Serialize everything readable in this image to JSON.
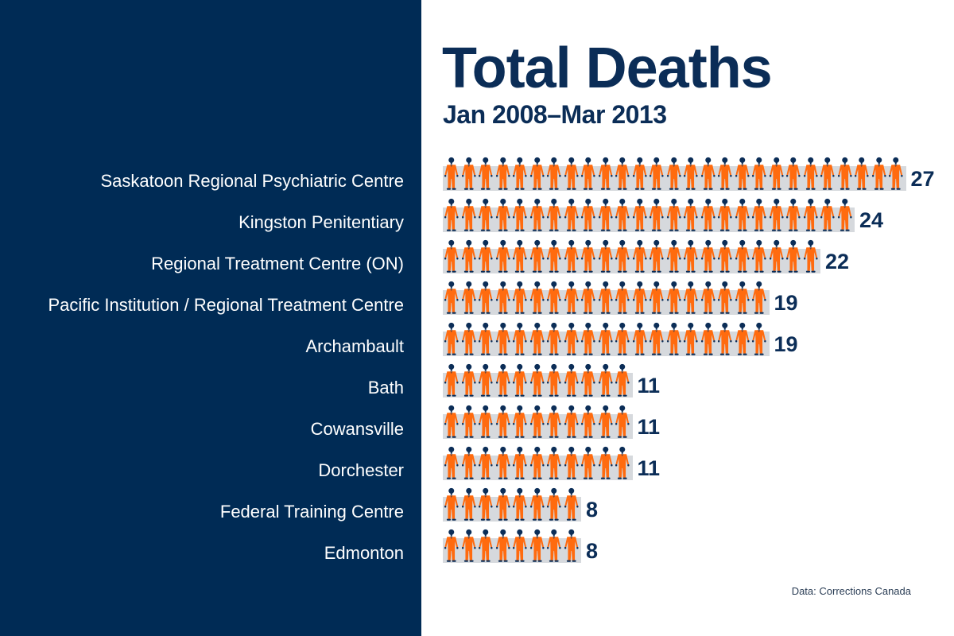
{
  "header": {
    "title": "Total Deaths",
    "subtitle": "Jan 2008–Mar 2013"
  },
  "colors": {
    "navy": "#002b55",
    "text_navy": "#0b2d57",
    "jumpsuit_orange": "#ff6b0f",
    "band_grey": "#d6d9dd",
    "label_white": "#ffffff"
  },
  "icon": "prisoner-figure-icon",
  "rows": [
    {
      "label": "Saskatoon Regional Psychiatric Centre",
      "value": "27"
    },
    {
      "label": "Kingston Penitentiary",
      "value": "24"
    },
    {
      "label": "Regional Treatment Centre (ON)",
      "value": "22"
    },
    {
      "label": "Pacific Institution / Regional Treatment Centre",
      "value": "19"
    },
    {
      "label": "Archambault",
      "value": "19"
    },
    {
      "label": "Bath",
      "value": "11"
    },
    {
      "label": "Cowansville",
      "value": "11"
    },
    {
      "label": "Dorchester",
      "value": "11"
    },
    {
      "label": "Federal Training Centre",
      "value": "8"
    },
    {
      "label": "Edmonton",
      "value": "8"
    }
  ],
  "source": "Data: Corrections Canada",
  "chart_data": {
    "type": "bar",
    "orientation": "horizontal",
    "style": "pictogram",
    "title": "Total Deaths",
    "subtitle": "Jan 2008–Mar 2013",
    "categories": [
      "Saskatoon Regional Psychiatric Centre",
      "Kingston Penitentiary",
      "Regional Treatment Centre (ON)",
      "Pacific Institution / Regional Treatment Centre",
      "Archambault",
      "Bath",
      "Cowansville",
      "Dorchester",
      "Federal Training Centre",
      "Edmonton"
    ],
    "values": [
      27,
      24,
      22,
      19,
      19,
      11,
      11,
      11,
      8,
      8
    ],
    "unit": "one figure = one death",
    "xlabel": "",
    "ylabel": "",
    "grid": false,
    "legend": null,
    "data_labels": true,
    "source": "Data: Corrections Canada"
  }
}
